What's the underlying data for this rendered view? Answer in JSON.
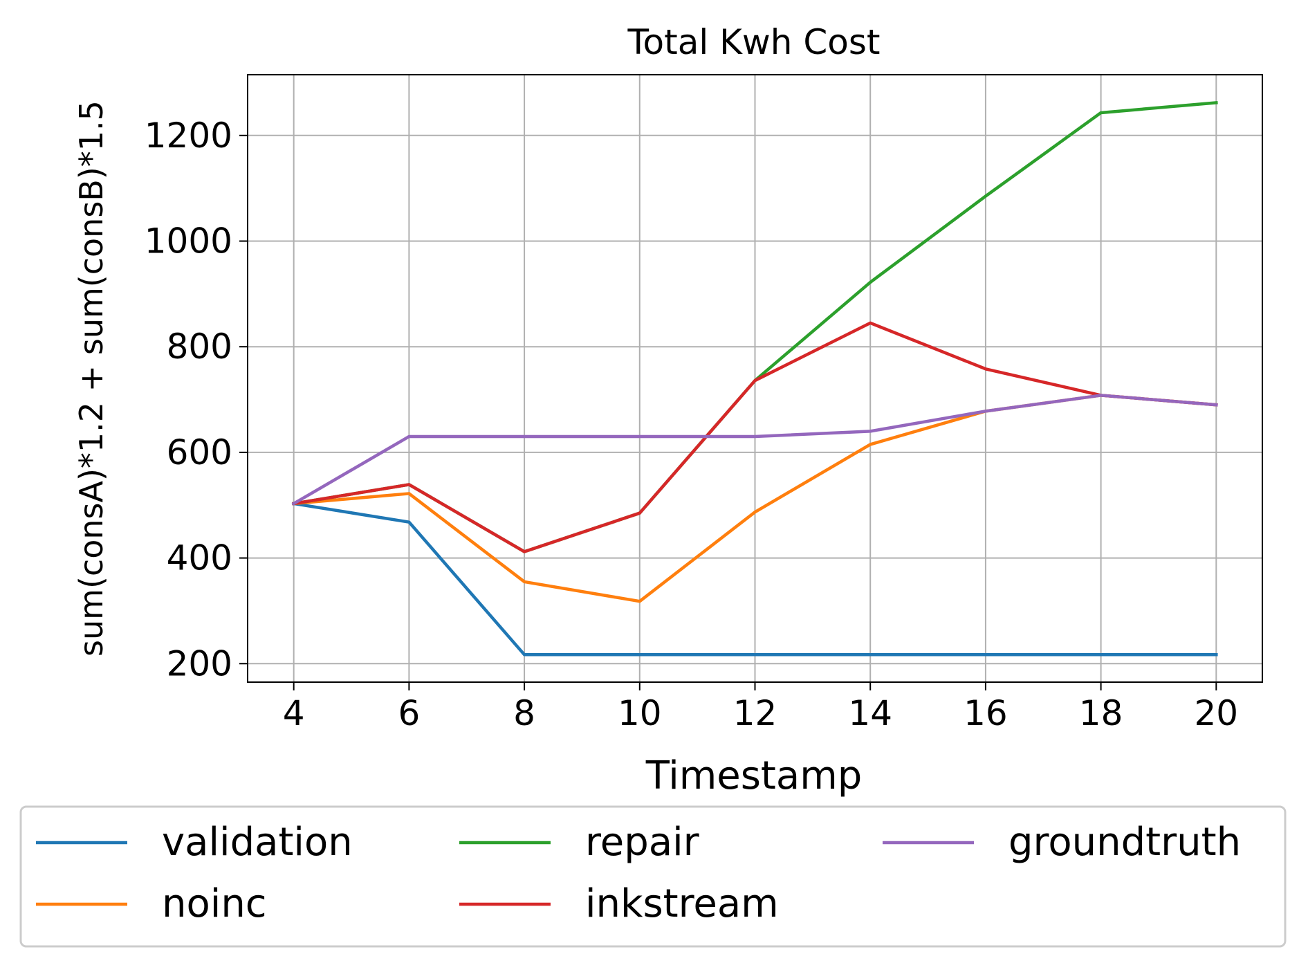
{
  "chart_data": {
    "type": "line",
    "title": "Total Kwh Cost",
    "xlabel": "Timestamp",
    "ylabel": "sum(consA)*1.2 + sum(consB)*1.5",
    "x": [
      4,
      6,
      8,
      10,
      12,
      14,
      16,
      18,
      20
    ],
    "xticks": [
      "4",
      "6",
      "8",
      "10",
      "12",
      "14",
      "16",
      "18",
      "20"
    ],
    "yticks": [
      "200",
      "400",
      "600",
      "800",
      "1000",
      "1200"
    ],
    "xlim": [
      3.2,
      20.8
    ],
    "ylim": [
      165,
      1315
    ],
    "grid": true,
    "legend_position": "bottom (below plot, 3 columns)",
    "series": [
      {
        "name": "validation",
        "color": "#1f77b4",
        "values": [
          503,
          468,
          217,
          217,
          217,
          217,
          217,
          217,
          217
        ]
      },
      {
        "name": "noinc",
        "color": "#ff7f0e",
        "values": [
          503,
          522,
          355,
          318,
          487,
          615,
          678,
          708,
          690
        ]
      },
      {
        "name": "repair",
        "color": "#2ca02c",
        "values": [
          503,
          539,
          412,
          485,
          736,
          922,
          1085,
          1243,
          1262
        ]
      },
      {
        "name": "inkstream",
        "color": "#d62728",
        "values": [
          503,
          539,
          412,
          485,
          736,
          845,
          758,
          708,
          690
        ]
      },
      {
        "name": "groundtruth",
        "color": "#9467bd",
        "values": [
          503,
          630,
          630,
          630,
          630,
          640,
          678,
          708,
          690
        ]
      }
    ]
  }
}
